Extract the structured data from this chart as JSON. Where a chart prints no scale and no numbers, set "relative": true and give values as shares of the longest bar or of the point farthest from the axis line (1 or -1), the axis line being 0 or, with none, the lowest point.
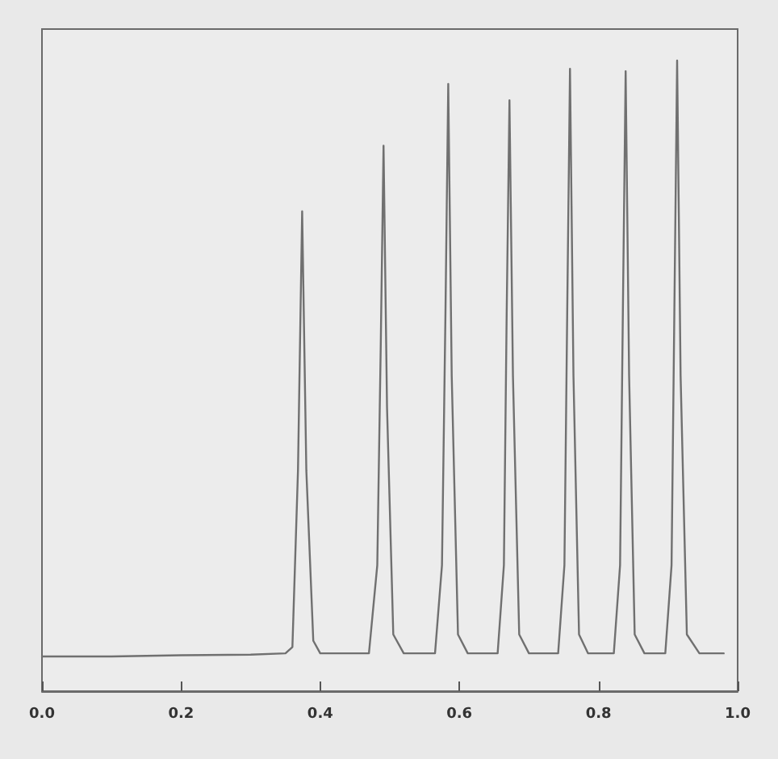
{
  "chart_data": {
    "type": "line",
    "relative": true,
    "color": "#707070",
    "marker": "none",
    "line_style": "solid",
    "grid": false,
    "xlim": [
      0,
      1.0
    ],
    "xticks": [
      {
        "value": 0,
        "label": "0.0"
      },
      0.2,
      0.4,
      0.6,
      {
        "value": 0.8,
        "label": "0.8"
      },
      {
        "value": 1.0,
        "label": "1.0"
      }
    ],
    "x": [
      0.0,
      0.1,
      0.2,
      0.3,
      0.35,
      0.36,
      0.368,
      0.374,
      0.38,
      0.39,
      0.4,
      0.47,
      0.482,
      0.487,
      0.491,
      0.496,
      0.505,
      0.52,
      0.565,
      0.575,
      0.58,
      0.584,
      0.589,
      0.598,
      0.612,
      0.655,
      0.664,
      0.668,
      0.672,
      0.677,
      0.686,
      0.7,
      0.742,
      0.751,
      0.755,
      0.759,
      0.764,
      0.772,
      0.785,
      0.822,
      0.831,
      0.835,
      0.839,
      0.844,
      0.852,
      0.866,
      0.896,
      0.905,
      0.909,
      0.913,
      0.918,
      0.927,
      0.945,
      0.98
    ],
    "values": [
      0.055,
      0.055,
      0.057,
      0.058,
      0.06,
      0.07,
      0.35,
      0.761,
      0.35,
      0.08,
      0.06,
      0.06,
      0.2,
      0.55,
      0.865,
      0.45,
      0.09,
      0.06,
      0.06,
      0.2,
      0.6,
      0.963,
      0.5,
      0.09,
      0.06,
      0.06,
      0.2,
      0.6,
      0.937,
      0.5,
      0.09,
      0.06,
      0.06,
      0.2,
      0.6,
      0.987,
      0.5,
      0.09,
      0.06,
      0.06,
      0.2,
      0.6,
      0.983,
      0.5,
      0.09,
      0.06,
      0.06,
      0.2,
      0.6,
      1,
      0.5,
      0.09,
      0.06,
      0.06
    ]
  }
}
